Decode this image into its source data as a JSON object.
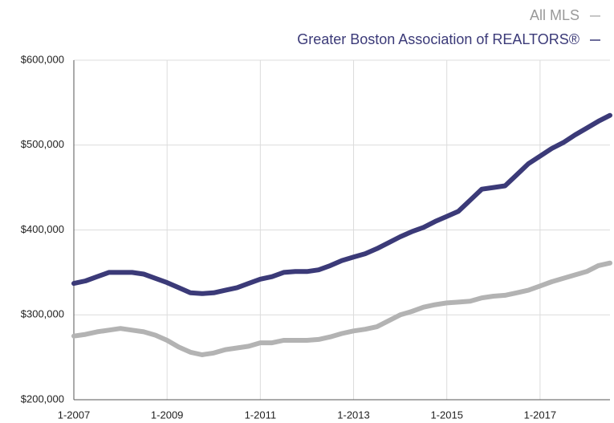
{
  "chart_data": {
    "type": "line",
    "x": [
      2007,
      2007.25,
      2007.5,
      2007.75,
      2008,
      2008.25,
      2008.5,
      2008.75,
      2009,
      2009.25,
      2009.5,
      2009.75,
      2010,
      2010.25,
      2010.5,
      2010.75,
      2011,
      2011.25,
      2011.5,
      2011.75,
      2012,
      2012.25,
      2012.5,
      2012.75,
      2013,
      2013.25,
      2013.5,
      2013.75,
      2014,
      2014.25,
      2014.5,
      2014.75,
      2015,
      2015.25,
      2015.5,
      2015.75,
      2016,
      2016.25,
      2016.5,
      2016.75,
      2017,
      2017.25,
      2017.5,
      2017.75,
      2018,
      2018.25,
      2018.5
    ],
    "series": [
      {
        "name": "All MLS",
        "color": "#b3b3b3",
        "values": [
          275000,
          277000,
          280000,
          282000,
          284000,
          282000,
          280000,
          276000,
          270000,
          262000,
          256000,
          253000,
          255000,
          259000,
          261000,
          263000,
          267000,
          267000,
          270000,
          270000,
          270000,
          271000,
          274000,
          278000,
          281000,
          283000,
          286000,
          293000,
          300000,
          304000,
          309000,
          312000,
          314000,
          315000,
          316000,
          320000,
          322000,
          323000,
          326000,
          329000,
          334000,
          339000,
          343000,
          347000,
          351000,
          358000,
          361000
        ]
      },
      {
        "name": "Greater Boston Association of REALTORS®",
        "color": "#3b3a78",
        "values": [
          337000,
          340000,
          345000,
          350000,
          350000,
          350000,
          348000,
          343000,
          338000,
          332000,
          326000,
          325000,
          326000,
          329000,
          332000,
          337000,
          342000,
          345000,
          350000,
          351000,
          351000,
          353000,
          358000,
          364000,
          368000,
          372000,
          378000,
          385000,
          392000,
          398000,
          403000,
          410000,
          416000,
          422000,
          435000,
          448000,
          450000,
          452000,
          465000,
          478000,
          487000,
          496000,
          503000,
          512000,
          520000,
          528000,
          535000
        ]
      }
    ],
    "xlim": [
      2007,
      2018.5
    ],
    "xticks": [
      {
        "value": 2007,
        "label": "1-2007"
      },
      {
        "value": 2009,
        "label": "1-2009"
      },
      {
        "value": 2011,
        "label": "1-2011"
      },
      {
        "value": 2013,
        "label": "1-2013"
      },
      {
        "value": 2015,
        "label": "1-2015"
      },
      {
        "value": 2017,
        "label": "1-2017"
      }
    ],
    "ylim": [
      200000,
      600000
    ],
    "yticks": [
      {
        "value": 200000,
        "label": "$200,000"
      },
      {
        "value": 300000,
        "label": "$300,000"
      },
      {
        "value": 400000,
        "label": "$400,000"
      },
      {
        "value": 500000,
        "label": "$500,000"
      },
      {
        "value": 600000,
        "label": "$600,000"
      }
    ],
    "grid": true,
    "legend": "top-right"
  }
}
